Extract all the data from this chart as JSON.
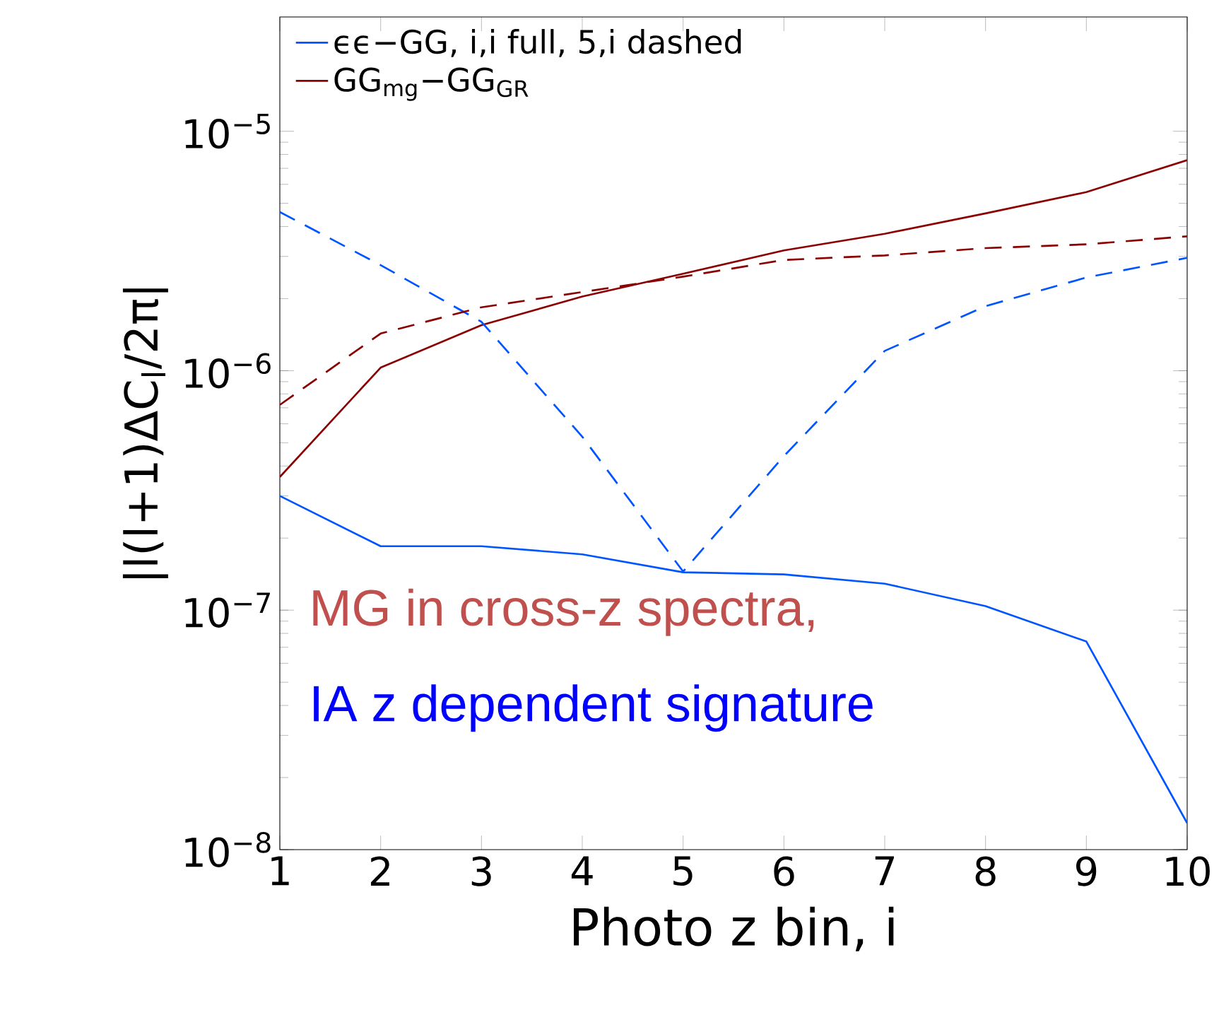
{
  "chart_data": {
    "type": "line",
    "xlabel": "Photo z bin, i",
    "ylabel": "|l(l+1)ΔC$_{l}$/2π|",
    "x": [
      1,
      2,
      3,
      4,
      5,
      6,
      7,
      8,
      9,
      10
    ],
    "series": [
      {
        "name": "ϵϵ−GG, i,i full, 5,i dashed",
        "color": "#0055ff",
        "line_style": "solid",
        "values": [
          3e-07,
          1.85e-07,
          1.85e-07,
          1.71e-07,
          1.44e-07,
          1.41e-07,
          1.29e-07,
          1.04e-07,
          7.4e-08,
          1.29e-08
        ]
      },
      {
        "name": "GG$_{mg}$−GG$_{GR}$",
        "color": "#8b0000",
        "line_style": "solid",
        "values": [
          3.6e-07,
          1.03e-06,
          1.55e-06,
          2.04e-06,
          2.54e-06,
          3.18e-06,
          3.73e-06,
          4.54e-06,
          5.57e-06,
          7.57e-06
        ]
      },
      {
        "color": "#0055ff",
        "line_style": "dashed",
        "values": [
          4.6e-06,
          2.76e-06,
          1.6e-06,
          5.3e-07,
          1.45e-07,
          4.4e-07,
          1.21e-06,
          1.86e-06,
          2.45e-06,
          2.96e-06
        ]
      },
      {
        "color": "#8b0000",
        "line_style": "dashed",
        "values": [
          7.2e-07,
          1.43e-06,
          1.84e-06,
          2.13e-06,
          2.47e-06,
          2.9e-06,
          3.03e-06,
          3.25e-06,
          3.37e-06,
          3.64e-06
        ]
      }
    ],
    "annotations": [
      "MG in cross-z spectra,",
      "IA z dependent signature"
    ],
    "xlim": [
      1,
      10
    ],
    "ylim": [
      1e-08,
      3e-05
    ],
    "xticks": [
      1,
      2,
      3,
      4,
      5,
      6,
      7,
      8,
      9,
      10
    ],
    "yticks": [
      {
        "value": 1e-08,
        "label": "10$^{−8}$"
      },
      {
        "value": 1e-07,
        "label": "10$^{−7}$"
      },
      {
        "value": 1e-06,
        "label": "10$^{−6}$"
      },
      {
        "value": 1e-05,
        "label": "10$^{−5}$"
      }
    ],
    "log": "y",
    "legend": "top left",
    "grid": false
  }
}
